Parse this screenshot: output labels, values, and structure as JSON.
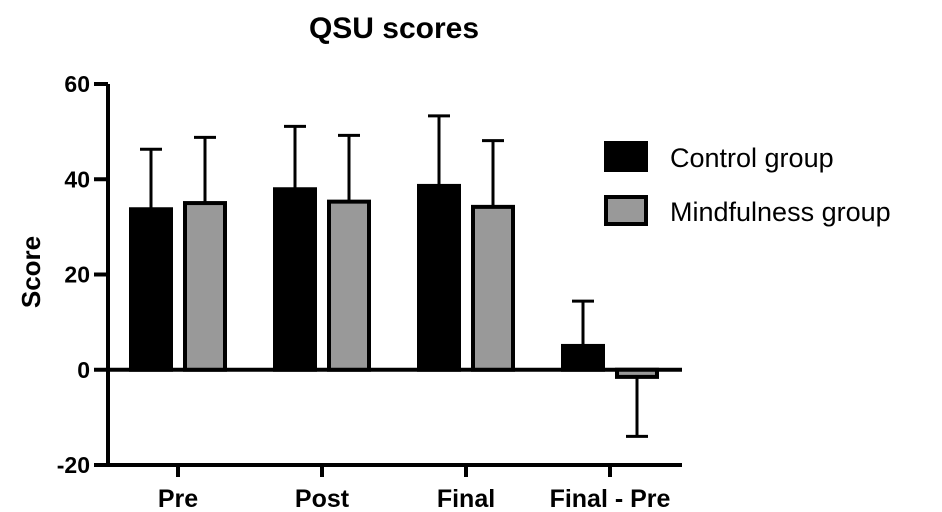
{
  "chart_data": {
    "type": "bar",
    "title": "QSU scores",
    "xlabel": "",
    "ylabel": "Score",
    "ylim": [
      -20,
      60
    ],
    "yticks": [
      -20,
      0,
      20,
      40,
      60
    ],
    "grid": false,
    "legend": "right",
    "categories": [
      "Pre",
      "Post",
      "Final",
      "Final - Pre"
    ],
    "series": [
      {
        "name": "Control group",
        "color": "#000000",
        "values": [
          33.7,
          37.9,
          38.6,
          5.0
        ],
        "error_plus": [
          12.6,
          13.2,
          14.7,
          9.4
        ]
      },
      {
        "name": "Mindfulness group",
        "color": "#999999",
        "values": [
          35.0,
          35.3,
          34.2,
          -1.5
        ],
        "error_plus": [
          13.8,
          13.9,
          13.9,
          12.5
        ]
      }
    ]
  }
}
